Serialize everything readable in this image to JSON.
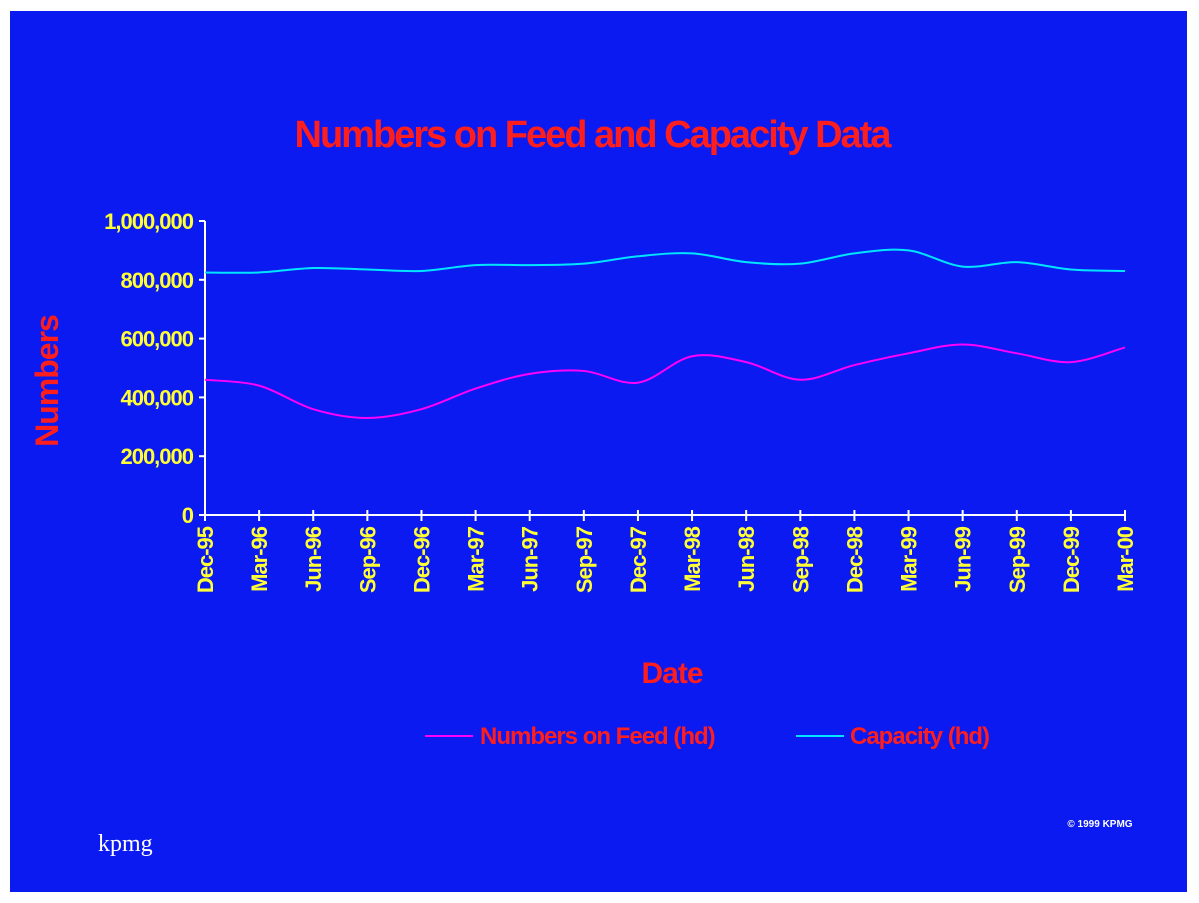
{
  "chart_data": {
    "type": "line",
    "title": "Numbers on Feed and Capacity Data",
    "xlabel": "Date",
    "ylabel": "Numbers",
    "categories": [
      "Dec-95",
      "Mar-96",
      "Jun-96",
      "Sep-96",
      "Dec-96",
      "Mar-97",
      "Jun-97",
      "Sep-97",
      "Dec-97",
      "Mar-98",
      "Jun-98",
      "Sep-98",
      "Dec-98",
      "Mar-99",
      "Jun-99",
      "Sep-99",
      "Dec-99",
      "Mar-00"
    ],
    "ylim": [
      0,
      1000000
    ],
    "yticks": [
      "0",
      "200,000",
      "400,000",
      "600,000",
      "800,000",
      "1,000,000"
    ],
    "series": [
      {
        "name": "Numbers on Feed (hd)",
        "color": "#FF00FF",
        "values": [
          460000,
          440000,
          360000,
          330000,
          360000,
          430000,
          480000,
          490000,
          450000,
          540000,
          520000,
          460000,
          510000,
          550000,
          580000,
          550000,
          520000,
          570000
        ]
      },
      {
        "name": "Capacity (hd)",
        "color": "#00E5FF",
        "values": [
          825000,
          825000,
          840000,
          835000,
          830000,
          850000,
          850000,
          855000,
          880000,
          890000,
          860000,
          855000,
          890000,
          900000,
          845000,
          860000,
          835000,
          830000
        ]
      }
    ],
    "legend_position": "bottom"
  },
  "footer": {
    "logo": "kpmg",
    "copyright": "© 1999 KPMG"
  }
}
